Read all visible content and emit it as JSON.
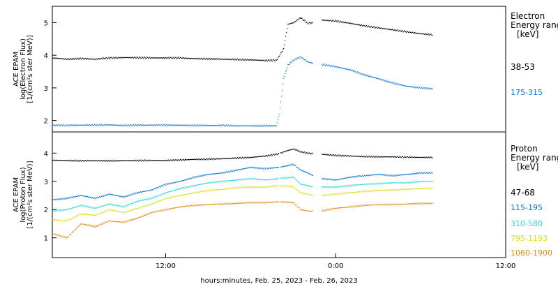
{
  "xaxis": {
    "label": "hours:minutes, Feb. 25, 2023 - Feb. 26, 2023",
    "range_hours": [
      4,
      36
    ],
    "ticks": [
      {
        "label": "12:00",
        "hour": 12
      },
      {
        "label": "0:00",
        "hour": 24
      },
      {
        "label": "12:00",
        "hour": 36
      }
    ]
  },
  "colors": {
    "black": "#000000",
    "blue": "#0b72d9",
    "cyan": "#28d9d9",
    "yellow": "#d6e019",
    "orange": "#e38a10"
  },
  "chart_data": [
    {
      "type": "scatter",
      "panel": "electron",
      "ylabel_lines": [
        "ACE EPAM",
        "log(Electron Flux)",
        "[1/(cm²s ster MeV)]"
      ],
      "ylim": [
        1.65,
        5.5
      ],
      "yticks": [
        2,
        3,
        4,
        5
      ],
      "legend": {
        "title_lines": [
          "Electron",
          "Energy range",
          "[keV]"
        ]
      },
      "gaps_hours": [
        [
          22.4,
          23.0
        ]
      ],
      "series": [
        {
          "name": "38-53",
          "color_key": "black",
          "x": [
            4.0,
            5.0,
            6.0,
            7.0,
            8.0,
            9.0,
            10.0,
            11.0,
            12.0,
            13.0,
            14.0,
            15.0,
            16.0,
            17.0,
            18.0,
            19.0,
            19.8,
            20.3,
            20.6,
            21.0,
            21.5,
            22.0,
            22.4,
            23.0,
            24.0,
            25.0,
            26.0,
            27.0,
            28.0,
            29.0,
            30.0,
            30.8
          ],
          "y": [
            3.92,
            3.88,
            3.9,
            3.88,
            3.92,
            3.93,
            3.93,
            3.92,
            3.92,
            3.92,
            3.9,
            3.89,
            3.88,
            3.87,
            3.86,
            3.84,
            3.85,
            4.2,
            4.95,
            5.0,
            5.15,
            4.98,
            5.0,
            5.08,
            5.05,
            4.98,
            4.9,
            4.84,
            4.78,
            4.72,
            4.66,
            4.63
          ]
        },
        {
          "name": "175-315",
          "color_key": "blue",
          "x": [
            4.0,
            5.0,
            6.0,
            7.0,
            8.0,
            9.0,
            10.0,
            11.0,
            12.0,
            13.0,
            14.0,
            15.0,
            16.0,
            17.0,
            18.0,
            19.0,
            19.8,
            20.0,
            20.3,
            20.6,
            21.0,
            21.5,
            22.0,
            22.4,
            23.0,
            24.0,
            25.0,
            26.0,
            27.0,
            28.0,
            29.0,
            30.0,
            30.8
          ],
          "y": [
            1.86,
            1.85,
            1.86,
            1.86,
            1.87,
            1.85,
            1.86,
            1.86,
            1.86,
            1.86,
            1.85,
            1.85,
            1.85,
            1.84,
            1.84,
            1.84,
            1.84,
            2.2,
            3.3,
            3.7,
            3.85,
            3.95,
            3.8,
            3.75,
            3.72,
            3.65,
            3.55,
            3.4,
            3.28,
            3.15,
            3.05,
            3.0,
            2.97
          ]
        }
      ]
    },
    {
      "type": "scatter",
      "panel": "proton",
      "ylabel_lines": [
        "ACE EPAM",
        "log(Proton Flux)",
        "[1/(cm²s ster MeV)]"
      ],
      "ylim": [
        0.3,
        4.75
      ],
      "yticks": [
        1,
        2,
        3,
        4
      ],
      "legend": {
        "title_lines": [
          "Proton",
          "Energy range",
          "[keV]"
        ]
      },
      "gaps_hours": [
        [
          20.0,
          20.1
        ],
        [
          22.4,
          23.0
        ]
      ],
      "series": [
        {
          "name": "47-68",
          "color_key": "black",
          "x": [
            4.0,
            6.0,
            8.0,
            10.0,
            12.0,
            14.0,
            16.0,
            18.0,
            19.0,
            20.0,
            20.5,
            21.0,
            21.5,
            22.0,
            22.4,
            23.0,
            24.0,
            25.0,
            26.0,
            27.0,
            28.0,
            29.0,
            30.0,
            30.8
          ],
          "y": [
            3.75,
            3.73,
            3.73,
            3.74,
            3.74,
            3.78,
            3.8,
            3.85,
            3.9,
            3.98,
            4.08,
            4.15,
            4.05,
            4.0,
            3.98,
            3.96,
            3.92,
            3.9,
            3.88,
            3.87,
            3.87,
            3.86,
            3.85,
            3.85
          ]
        },
        {
          "name": "115-195",
          "color_key": "blue",
          "x": [
            4.0,
            5.0,
            6.0,
            7.0,
            8.0,
            9.0,
            10.0,
            11.0,
            12.0,
            13.0,
            14.0,
            15.0,
            16.0,
            17.0,
            18.0,
            19.0,
            20.0,
            21.0,
            21.5,
            22.0,
            22.4,
            23.0,
            24.0,
            25.0,
            26.0,
            27.0,
            28.0,
            29.0,
            30.0,
            30.8
          ],
          "y": [
            2.35,
            2.4,
            2.5,
            2.4,
            2.55,
            2.45,
            2.6,
            2.7,
            2.9,
            3.0,
            3.15,
            3.25,
            3.3,
            3.4,
            3.5,
            3.45,
            3.5,
            3.6,
            3.4,
            3.3,
            3.2,
            3.1,
            3.05,
            3.15,
            3.2,
            3.25,
            3.2,
            3.25,
            3.3,
            3.3
          ]
        },
        {
          "name": "310-580",
          "color_key": "cyan",
          "x": [
            4.0,
            5.0,
            6.0,
            7.0,
            8.0,
            9.0,
            10.0,
            11.0,
            12.0,
            13.0,
            14.0,
            15.0,
            16.0,
            17.0,
            18.0,
            19.0,
            20.0,
            21.0,
            21.5,
            22.0,
            22.4,
            23.0,
            24.0,
            25.0,
            26.0,
            27.0,
            28.0,
            29.0,
            30.0,
            30.8
          ],
          "y": [
            1.95,
            2.0,
            2.15,
            2.05,
            2.2,
            2.1,
            2.3,
            2.4,
            2.6,
            2.75,
            2.85,
            2.95,
            3.0,
            3.05,
            3.1,
            3.05,
            3.1,
            3.15,
            2.9,
            2.85,
            2.8,
            2.8,
            2.8,
            2.85,
            2.9,
            2.92,
            2.95,
            2.95,
            3.0,
            3.0
          ]
        },
        {
          "name": "795-1193",
          "color_key": "yellow",
          "x": [
            4.0,
            5.0,
            6.0,
            7.0,
            8.0,
            9.0,
            10.0,
            11.0,
            12.0,
            13.0,
            14.0,
            15.0,
            16.0,
            17.0,
            18.0,
            19.0,
            20.0,
            21.0,
            21.5,
            22.0,
            22.4,
            23.0,
            24.0,
            25.0,
            26.0,
            27.0,
            28.0,
            29.0,
            30.0,
            30.8
          ],
          "y": [
            1.65,
            1.6,
            1.85,
            1.8,
            2.0,
            1.9,
            2.05,
            2.2,
            2.4,
            2.5,
            2.6,
            2.68,
            2.72,
            2.78,
            2.8,
            2.8,
            2.85,
            2.8,
            2.6,
            2.55,
            2.5,
            2.5,
            2.55,
            2.6,
            2.65,
            2.68,
            2.7,
            2.72,
            2.75,
            2.75
          ]
        },
        {
          "name": "1060-1900",
          "color_key": "orange",
          "x": [
            4.0,
            5.0,
            6.0,
            7.0,
            8.0,
            9.0,
            10.0,
            11.0,
            12.0,
            13.0,
            14.0,
            15.0,
            16.0,
            17.0,
            18.0,
            19.0,
            20.0,
            21.0,
            21.5,
            22.0,
            22.4,
            23.0,
            24.0,
            25.0,
            26.0,
            27.0,
            28.0,
            29.0,
            30.0,
            30.8
          ],
          "y": [
            1.15,
            1.0,
            1.5,
            1.4,
            1.6,
            1.55,
            1.7,
            1.9,
            2.0,
            2.1,
            2.15,
            2.18,
            2.2,
            2.22,
            2.25,
            2.25,
            2.28,
            2.25,
            2.0,
            1.95,
            1.95,
            1.95,
            2.05,
            2.1,
            2.15,
            2.18,
            2.18,
            2.2,
            2.22,
            2.22
          ]
        }
      ]
    }
  ]
}
